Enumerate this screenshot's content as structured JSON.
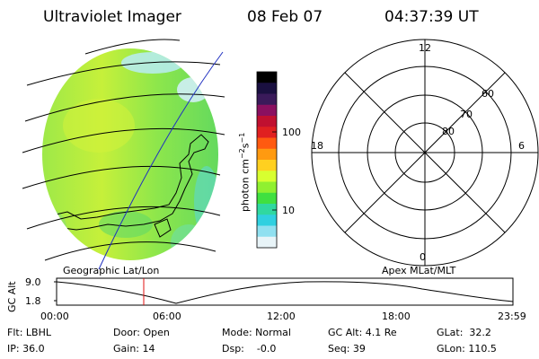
{
  "header": {
    "instrument": "Ultraviolet Imager",
    "date": "08 Feb 07",
    "time": "04:37:39 UT"
  },
  "earth_panel": {
    "label": "Geographic Lat/Lon"
  },
  "colorbar": {
    "unit_label": "photon cm",
    "unit_sup1": "−2",
    "unit_mid": "s",
    "unit_sup2": "−1",
    "tick_labels": [
      "100",
      "10"
    ],
    "colors": [
      "#000000",
      "#1a1040",
      "#3a1a5a",
      "#8a1060",
      "#c01030",
      "#e02020",
      "#ff5a10",
      "#ff9a10",
      "#ffd020",
      "#d8ff30",
      "#90f030",
      "#40e040",
      "#30d8a0",
      "#30d0e0",
      "#90e0f0",
      "#e8f4f8"
    ]
  },
  "polar_panel": {
    "label": "Apex MLat/MLT",
    "hour_labels": [
      "12",
      "18",
      "6",
      "0"
    ],
    "lat_labels": [
      "60",
      "70",
      "80"
    ]
  },
  "timeline": {
    "axis_title": "GC Alt",
    "y_labels": [
      "9.0",
      "1.8"
    ],
    "x_labels": [
      "00:00",
      "06:00",
      "12:00",
      "18:00",
      "23:59"
    ],
    "marker_time": "04:37:39"
  },
  "footer": {
    "flt": "Flt: LBHL",
    "door": "Door: Open",
    "mode": "Mode: Normal",
    "gcalt": "GC Alt: 4.1 Re",
    "glat": "GLat:  32.2",
    "ip": "IP: 36.0",
    "gain": "Gain: 14",
    "dsp": "Dsp:    -0.0",
    "seq": "Seq: 39",
    "glon": "GLon: 110.5"
  }
}
